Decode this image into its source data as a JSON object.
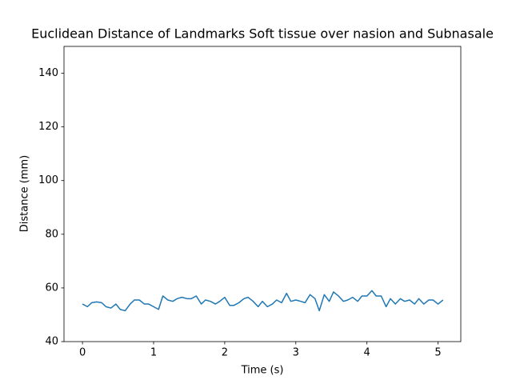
{
  "chart_data": {
    "type": "line",
    "title": "Euclidean Distance of Landmarks Soft tissue over nasion and Subnasale",
    "x_label": "Time (s)",
    "y_label": "Distance (mm)",
    "x": [
      0,
      0.07,
      0.13,
      0.2,
      0.27,
      0.33,
      0.4,
      0.47,
      0.53,
      0.6,
      0.67,
      0.73,
      0.8,
      0.87,
      0.93,
      1,
      1.07,
      1.13,
      1.2,
      1.27,
      1.33,
      1.4,
      1.47,
      1.53,
      1.6,
      1.67,
      1.73,
      1.8,
      1.87,
      1.93,
      2,
      2.07,
      2.13,
      2.2,
      2.27,
      2.33,
      2.4,
      2.47,
      2.53,
      2.6,
      2.67,
      2.73,
      2.8,
      2.87,
      2.93,
      3,
      3.07,
      3.13,
      3.2,
      3.27,
      3.33,
      3.4,
      3.47,
      3.53,
      3.6,
      3.67,
      3.73,
      3.8,
      3.87,
      3.93,
      4,
      4.07,
      4.13,
      4.2,
      4.27,
      4.33,
      4.4,
      4.47,
      4.53,
      4.6,
      4.67,
      4.73,
      4.8,
      4.87,
      4.93,
      5,
      5.07
    ],
    "series": [
      {
        "color": "#1f77b4",
        "values": [
          54,
          53,
          54.5,
          54.8,
          54.5,
          53,
          52.5,
          54,
          52,
          51.5,
          54,
          55.5,
          55.5,
          54,
          54,
          53,
          52,
          57,
          55.5,
          55,
          56,
          56.5,
          56,
          56,
          57,
          54,
          55.5,
          55,
          54,
          55,
          56.5,
          53.5,
          53.5,
          54.5,
          56,
          56.5,
          55,
          53,
          55,
          53,
          54,
          55.5,
          54.5,
          58,
          55,
          55.5,
          55,
          54.5,
          57.5,
          56,
          51.5,
          57.5,
          55,
          58.5,
          57,
          55,
          55.5,
          56.5,
          55,
          57,
          57,
          59,
          57,
          57,
          53,
          56,
          54,
          56,
          55,
          55.5,
          54,
          56,
          54,
          55.5,
          55.5,
          54,
          55.5
        ]
      }
    ],
    "xlim": [
      -0.26,
      5.32
    ],
    "xticks": [
      0,
      1,
      2,
      3,
      4,
      5
    ],
    "ylim": [
      40,
      150
    ],
    "yticks": [
      40,
      60,
      80,
      100,
      120,
      140
    ]
  }
}
